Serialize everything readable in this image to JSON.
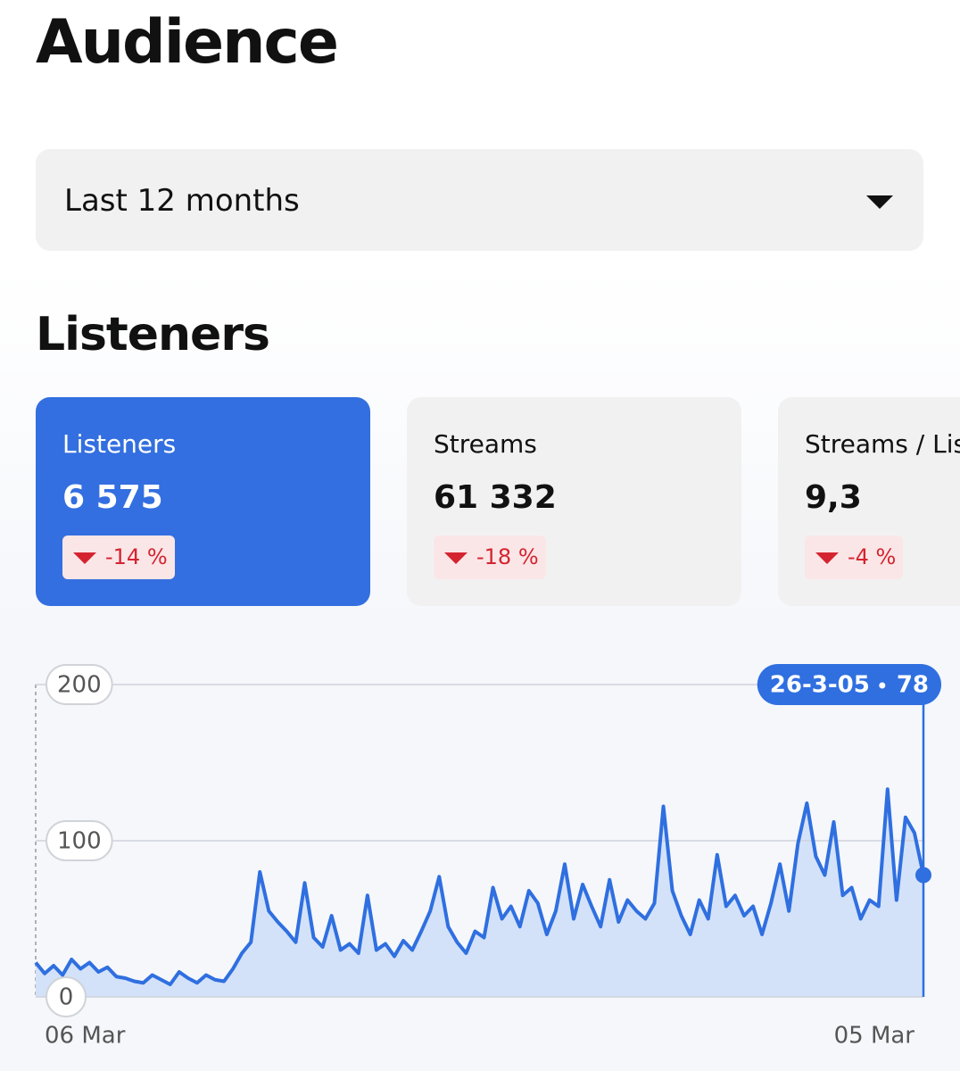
{
  "header": {
    "title": "Audience"
  },
  "filter": {
    "selected": "Last 12 months"
  },
  "section": {
    "title": "Listeners"
  },
  "cards": [
    {
      "label": "Listeners",
      "value": "6 575",
      "change": "-14 %",
      "selected": true
    },
    {
      "label": "Streams",
      "value": "61 332",
      "change": "-18 %",
      "selected": false
    },
    {
      "label": "Streams / Lis",
      "value": "9,3",
      "change": "-4 %",
      "selected": false
    }
  ],
  "chart_data": {
    "type": "area",
    "color": "#2f6fe0",
    "fill_color": "#d3e2f8",
    "ylim": [
      0,
      200
    ],
    "yticks": [
      0,
      100,
      200
    ],
    "grid": true,
    "categories": [
      "06 Mar",
      null,
      null,
      null,
      null,
      null,
      null,
      null,
      null,
      null,
      null,
      null,
      null,
      null,
      null,
      null,
      null,
      null,
      null,
      null,
      null,
      null,
      null,
      null,
      null,
      null,
      null,
      null,
      null,
      null,
      null,
      null,
      null,
      null,
      null,
      null,
      null,
      null,
      null,
      null,
      null,
      null,
      null,
      null,
      null,
      null,
      null,
      null,
      null,
      null,
      null,
      null,
      null,
      null,
      null,
      null,
      null,
      null,
      null,
      null,
      null,
      null,
      null,
      null,
      null,
      null,
      null,
      null,
      null,
      null,
      null,
      null,
      null,
      null,
      null,
      null,
      null,
      null,
      null,
      null,
      null,
      null,
      null,
      null,
      null,
      null,
      null,
      null,
      null,
      null,
      null,
      null,
      null,
      null,
      null,
      null,
      null,
      null,
      null,
      "05 Mar"
    ],
    "values": [
      22,
      15,
      20,
      14,
      24,
      18,
      22,
      16,
      19,
      13,
      12,
      10,
      9,
      14,
      11,
      8,
      16,
      12,
      9,
      14,
      11,
      10,
      18,
      28,
      35,
      80,
      55,
      48,
      42,
      35,
      73,
      38,
      32,
      52,
      30,
      34,
      28,
      65,
      30,
      34,
      26,
      36,
      30,
      42,
      55,
      77,
      45,
      35,
      28,
      42,
      38,
      70,
      50,
      58,
      45,
      68,
      60,
      40,
      55,
      85,
      50,
      72,
      58,
      45,
      75,
      48,
      62,
      55,
      50,
      60,
      122,
      68,
      52,
      40,
      62,
      50,
      91,
      58,
      65,
      52,
      58,
      40,
      60,
      85,
      55,
      98,
      124,
      90,
      78,
      112,
      65,
      70,
      50,
      62,
      58,
      133,
      62,
      115,
      105,
      78
    ],
    "tooltip": {
      "x": "26-3-05",
      "value": 78
    }
  }
}
